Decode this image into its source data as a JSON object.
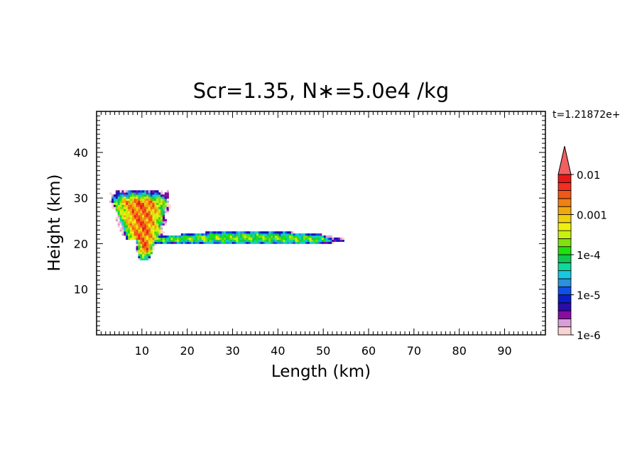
{
  "chart_data": {
    "type": "heatmap",
    "title": "Scr=1.35, N∗=5.0e4 /kg",
    "timestamp": "t=1.21872e+",
    "xlabel": "Length  (km)",
    "ylabel": "Height  (km)",
    "xlim": [
      0,
      99
    ],
    "ylim": [
      0,
      49
    ],
    "xticks": [
      10,
      20,
      30,
      40,
      50,
      60,
      70,
      80,
      90
    ],
    "yticks": [
      10,
      20,
      30,
      40
    ],
    "grid": false,
    "colorbar": {
      "scale": "log",
      "range": [
        1e-06,
        0.01
      ],
      "extend": "max",
      "labels": [
        "1e-6",
        "1e-5",
        "1e-4",
        "0.001",
        "0.01"
      ],
      "colors": [
        "#f9d3d3",
        "#d6a0d6",
        "#8a0ca0",
        "#2a0ca8",
        "#0a1ec8",
        "#1050e8",
        "#2a90e0",
        "#18c8e0",
        "#10d8a0",
        "#10c850",
        "#20e010",
        "#80e010",
        "#c8f010",
        "#f0f010",
        "#f0d010",
        "#f0a810",
        "#f08010",
        "#f05818",
        "#f03020",
        "#e81818"
      ],
      "extend_color": "#f06060"
    },
    "features": [
      {
        "name": "vertical plume",
        "x_range": [
          2,
          17
        ],
        "y_range": [
          17,
          31
        ],
        "peak_value": 0.002
      },
      {
        "name": "anvil layer",
        "x_range": [
          12,
          54
        ],
        "y_range": [
          19.5,
          22.5
        ],
        "peak_value": 0.0002
      }
    ]
  }
}
